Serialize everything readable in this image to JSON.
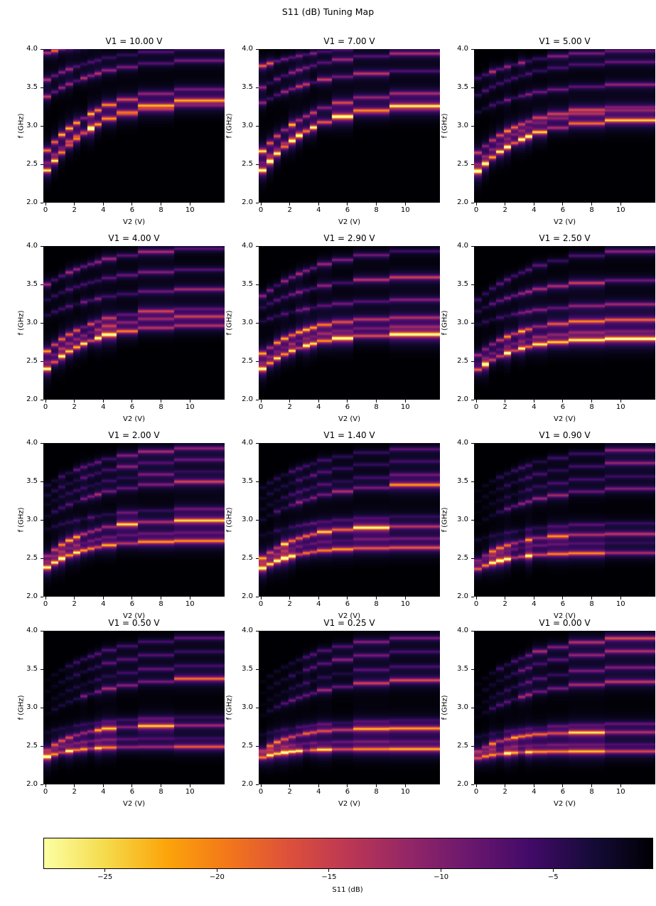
{
  "figure": {
    "suptitle": "S11 (dB) Tuning Map"
  },
  "chart_data": {
    "type": "heatmap",
    "title": "S11 (dB) Tuning Map",
    "layout_note": "4-row x 3-column grid of S11(V2, f) maps, one panel per V1 bias; colorbar at bottom",
    "xlabel": "V2 (V)",
    "ylabel": "f (GHz)",
    "x_tick_labels": [
      "0",
      "2",
      "4",
      "6",
      "8",
      "10"
    ],
    "x_ticks": [
      0,
      2,
      4,
      6,
      8,
      10
    ],
    "y_tick_labels": [
      "4.0",
      "3.5",
      "3.0",
      "2.5",
      "2.0"
    ],
    "y_ticks": [
      4.0,
      3.5,
      3.0,
      2.5,
      2.0
    ],
    "x_range": [
      -0.15,
      12.4
    ],
    "y_range": [
      2.0,
      4.0
    ],
    "v2_cell_edges": [
      -0.15,
      0.4,
      0.9,
      1.4,
      1.9,
      2.4,
      2.9,
      3.4,
      3.9,
      4.9,
      6.4,
      8.9,
      12.4
    ],
    "v2_cell_values": [
      0,
      0.5,
      1,
      1.5,
      2,
      2.5,
      3,
      3.5,
      4.4,
      5.6,
      7.6,
      10.6
    ],
    "colormap": {
      "name": "inferno reversed (bright yellow = deepest S11 dip, black = 0 dB)",
      "vmin": -27.75,
      "vmax": -0.6,
      "inferno_stops": [
        [
          0.0,
          "#000004"
        ],
        [
          0.1,
          "#160b39"
        ],
        [
          0.2,
          "#420a68"
        ],
        [
          0.3,
          "#6a176e"
        ],
        [
          0.4,
          "#932667"
        ],
        [
          0.5,
          "#bc3754"
        ],
        [
          0.6,
          "#dd513a"
        ],
        [
          0.7,
          "#f37819"
        ],
        [
          0.8,
          "#fca50a"
        ],
        [
          0.9,
          "#f5db4c"
        ],
        [
          1.0,
          "#fcffa4"
        ]
      ]
    },
    "colorbar": {
      "label": "S11 (dB)",
      "ticks": [
        -25,
        -20,
        -15,
        -10,
        -5
      ],
      "tick_labels": [
        "−25",
        "−20",
        "−15",
        "−10",
        "−5"
      ]
    },
    "model_note": "Each panel shows stepped resonance traces: mode frequency f(V2)=fsat-(fsat-f0)*exp(-V2/tau), quantized to the V2 cells; mode entries are [f0_GHz, fsat_GHz, depth_at_V2min_dB, depth_at_V2max_dB, tau_V]",
    "panels": [
      {
        "title": "V1 = 10.00 V",
        "v1": 10.0,
        "modes": [
          [
            2.42,
            3.38,
            22,
            13,
            3.6
          ],
          [
            2.52,
            3.3,
            7,
            5,
            3.4
          ],
          [
            2.68,
            3.52,
            17,
            9,
            3.6
          ],
          [
            3.38,
            3.88,
            8,
            8,
            3.8
          ],
          [
            3.6,
            4.02,
            7,
            6,
            3.8
          ],
          [
            3.95,
            4.18,
            13,
            2,
            4.0
          ]
        ]
      },
      {
        "title": "V1 = 7.00 V",
        "v1": 7.0,
        "modes": [
          [
            2.42,
            3.3,
            22,
            15,
            3.5
          ],
          [
            2.52,
            3.24,
            6,
            4,
            3.4
          ],
          [
            2.67,
            3.46,
            16,
            8,
            3.5
          ],
          [
            3.3,
            3.74,
            7,
            9,
            3.8
          ],
          [
            3.5,
            3.97,
            6,
            7,
            3.8
          ],
          [
            3.78,
            4.06,
            11,
            3,
            4.0
          ]
        ]
      },
      {
        "title": "V1 = 5.00 V",
        "v1": 5.0,
        "modes": [
          [
            2.41,
            3.1,
            21,
            17,
            3.3
          ],
          [
            2.5,
            3.23,
            6,
            7,
            3.3
          ],
          [
            2.65,
            3.27,
            13,
            8,
            3.3
          ],
          [
            3.18,
            3.56,
            4,
            8,
            3.8
          ],
          [
            3.4,
            3.86,
            4,
            5,
            3.8
          ],
          [
            3.62,
            4.0,
            8,
            6,
            4.0
          ]
        ]
      },
      {
        "title": "V1 = 4.00 V",
        "v1": 4.0,
        "modes": [
          [
            2.4,
            2.98,
            21,
            17,
            3.0
          ],
          [
            2.49,
            3.1,
            5,
            8,
            3.0
          ],
          [
            2.63,
            3.2,
            12,
            8,
            3.1
          ],
          [
            3.1,
            3.46,
            3,
            8,
            3.9
          ],
          [
            3.3,
            3.72,
            3,
            6,
            3.9
          ],
          [
            3.5,
            4.0,
            7,
            7,
            4.0
          ]
        ]
      },
      {
        "title": "V1 = 2.90 V",
        "v1": 2.9,
        "modes": [
          [
            2.4,
            2.86,
            21,
            18,
            2.8
          ],
          [
            2.48,
            2.96,
            4,
            6,
            2.8
          ],
          [
            2.6,
            3.08,
            12,
            13,
            2.9
          ],
          [
            3.02,
            3.32,
            3,
            8,
            3.9
          ],
          [
            3.2,
            3.62,
            3,
            10,
            3.9
          ],
          [
            3.35,
            3.98,
            6,
            8,
            4.1
          ]
        ]
      },
      {
        "title": "V1 = 2.50 V",
        "v1": 2.5,
        "modes": [
          [
            2.39,
            2.8,
            21,
            18,
            2.7
          ],
          [
            2.47,
            2.9,
            4,
            5,
            2.7
          ],
          [
            2.58,
            3.05,
            12,
            13,
            2.8
          ],
          [
            2.98,
            3.26,
            3,
            7,
            3.9
          ],
          [
            3.15,
            3.58,
            3,
            10,
            3.9
          ],
          [
            3.3,
            3.98,
            5,
            8,
            4.1
          ]
        ]
      },
      {
        "title": "V1 = 2.00 V",
        "v1": 2.0,
        "modes": [
          [
            2.38,
            2.73,
            21,
            17,
            2.5
          ],
          [
            2.46,
            2.84,
            4,
            4,
            2.5
          ],
          [
            2.53,
            3.0,
            13,
            17,
            2.7
          ],
          [
            2.88,
            3.16,
            2,
            6,
            3.9
          ],
          [
            3.05,
            3.53,
            2,
            12,
            4.0
          ],
          [
            3.2,
            3.66,
            2,
            5,
            4.0
          ],
          [
            3.32,
            3.82,
            3,
            6,
            4.1
          ],
          [
            3.45,
            3.97,
            3,
            7,
            4.1
          ]
        ]
      },
      {
        "title": "V1 = 1.40 V",
        "v1": 1.4,
        "modes": [
          [
            2.37,
            2.64,
            21,
            16,
            2.3
          ],
          [
            2.44,
            2.76,
            4,
            4,
            2.3
          ],
          [
            2.5,
            2.92,
            12,
            18,
            2.6
          ],
          [
            2.8,
            3.06,
            2,
            5,
            3.9
          ],
          [
            3.0,
            3.49,
            2,
            12,
            4.0
          ],
          [
            3.14,
            3.62,
            2,
            5,
            4.0
          ],
          [
            3.28,
            3.8,
            2,
            6,
            4.1
          ],
          [
            3.42,
            3.96,
            2,
            7,
            4.1
          ]
        ]
      },
      {
        "title": "V1 = 0.90 V",
        "v1": 0.9,
        "modes": [
          [
            2.36,
            2.57,
            20,
            15,
            2.1
          ],
          [
            2.43,
            2.7,
            4,
            4,
            2.1
          ],
          [
            2.47,
            2.82,
            10,
            15,
            2.4
          ],
          [
            2.74,
            2.97,
            2,
            4,
            3.9
          ],
          [
            2.95,
            3.44,
            1,
            12,
            4.0
          ],
          [
            3.1,
            3.6,
            1,
            5,
            4.0
          ],
          [
            3.24,
            3.78,
            1,
            6,
            4.1
          ],
          [
            3.38,
            3.95,
            1,
            7,
            4.1
          ]
        ]
      },
      {
        "title": "V1 = 0.50 V",
        "v1": 0.5,
        "modes": [
          [
            2.36,
            2.49,
            19,
            12,
            1.8
          ],
          [
            2.42,
            2.6,
            4,
            4,
            1.9
          ],
          [
            2.45,
            2.77,
            10,
            15,
            2.2
          ],
          [
            2.68,
            2.89,
            2,
            4,
            3.9
          ],
          [
            2.92,
            3.41,
            1,
            12,
            4.0
          ],
          [
            3.06,
            3.58,
            1,
            5,
            4.0
          ],
          [
            3.21,
            3.77,
            1,
            6,
            4.1
          ],
          [
            3.36,
            3.95,
            1,
            7,
            4.1
          ]
        ]
      },
      {
        "title": "V1 = 0.25 V",
        "v1": 0.25,
        "modes": [
          [
            2.35,
            2.46,
            19,
            13,
            1.7
          ],
          [
            2.41,
            2.56,
            4,
            4,
            1.8
          ],
          [
            2.44,
            2.73,
            10,
            15,
            2.1
          ],
          [
            2.65,
            2.85,
            2,
            4,
            3.9
          ],
          [
            2.9,
            3.39,
            1,
            12,
            4.0
          ],
          [
            3.04,
            3.57,
            1,
            5,
            4.0
          ],
          [
            3.19,
            3.77,
            1,
            7,
            4.1
          ],
          [
            3.34,
            3.95,
            1,
            8,
            4.1
          ]
        ]
      },
      {
        "title": "V1 = 0.00 V",
        "v1": 0.0,
        "modes": [
          [
            2.34,
            2.43,
            19,
            15,
            1.6
          ],
          [
            2.4,
            2.52,
            4,
            4,
            1.7
          ],
          [
            2.43,
            2.68,
            10,
            15,
            2.0
          ],
          [
            2.62,
            2.8,
            2,
            4,
            3.9
          ],
          [
            2.88,
            3.37,
            1,
            13,
            4.0
          ],
          [
            3.01,
            3.56,
            1,
            6,
            4.0
          ],
          [
            3.16,
            3.78,
            1,
            9,
            4.1
          ],
          [
            3.31,
            3.95,
            1,
            10,
            4.1
          ]
        ]
      }
    ]
  }
}
